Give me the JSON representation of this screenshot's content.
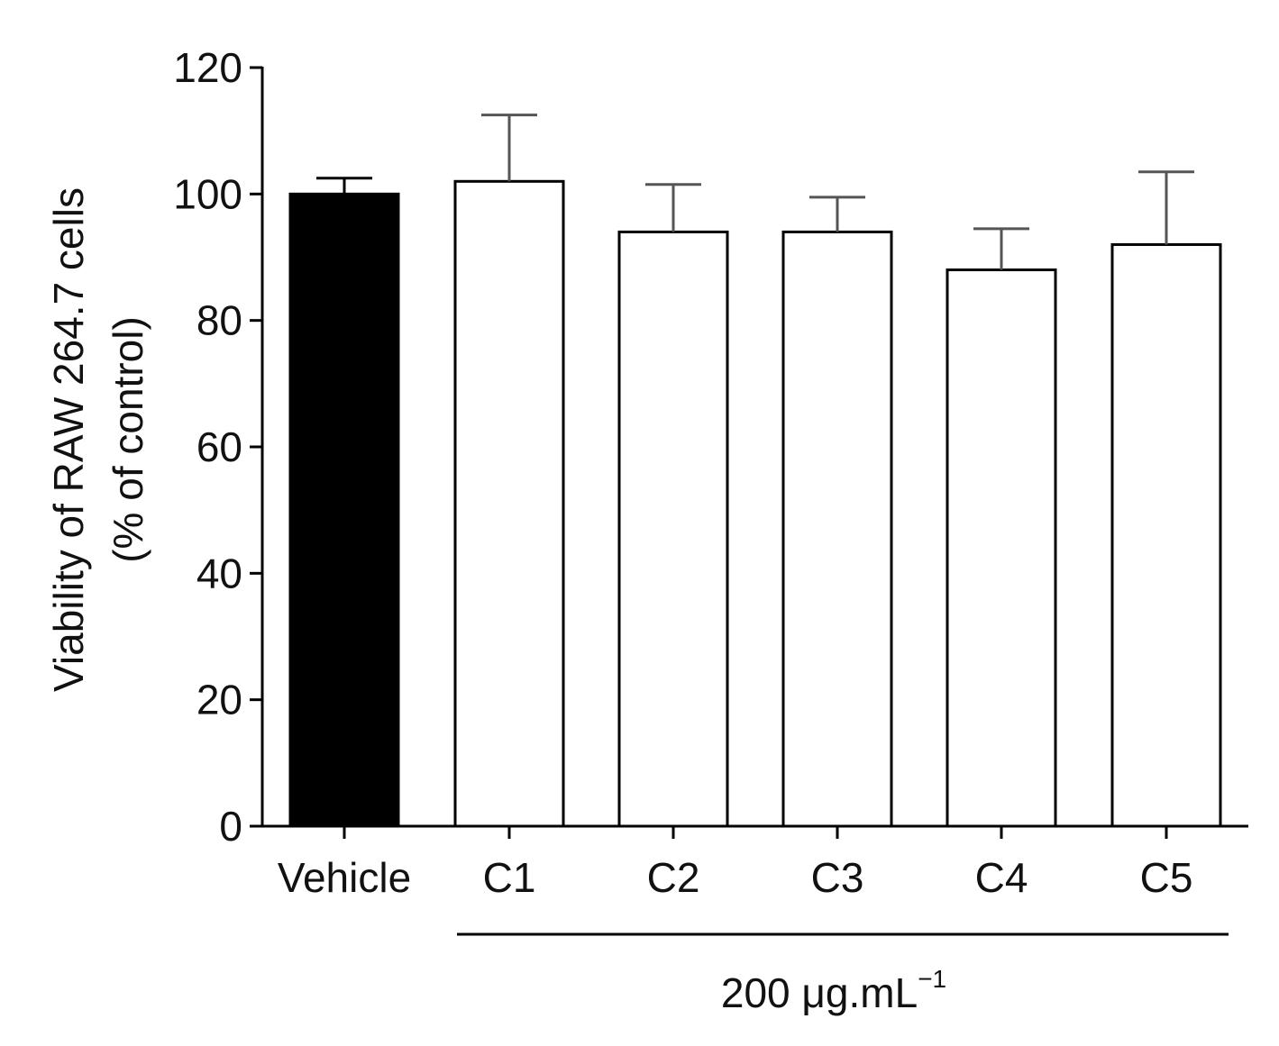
{
  "chart_data": {
    "type": "bar",
    "categories": [
      "Vehicle",
      "C1",
      "C2",
      "C3",
      "C4",
      "C5"
    ],
    "values": [
      100,
      102,
      94,
      94,
      88,
      92
    ],
    "errors": [
      2.5,
      10.5,
      7.5,
      5.5,
      6.5,
      11.5
    ],
    "bar_fills": [
      "#000000",
      "#ffffff",
      "#ffffff",
      "#ffffff",
      "#ffffff",
      "#ffffff"
    ],
    "ylabel_line1": "Viability of RAW 264.7 cells",
    "ylabel_line2": "(% of control)",
    "ylim": [
      0,
      120
    ],
    "yticks": [
      0,
      20,
      40,
      60,
      80,
      100,
      120
    ],
    "yticklabels": [
      "0",
      "20",
      "40",
      "60",
      "80",
      "100",
      "120"
    ],
    "group_label_main": "200 μg.mL",
    "group_label_sup": "−1",
    "group_members": [
      "C1",
      "C2",
      "C3",
      "C4",
      "C5"
    ],
    "grid": false,
    "legend": "none"
  }
}
